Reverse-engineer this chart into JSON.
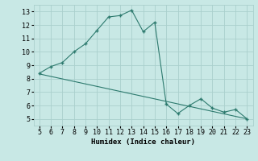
{
  "x": [
    5,
    6,
    7,
    8,
    9,
    10,
    11,
    12,
    13,
    14,
    15,
    16,
    17,
    18,
    19,
    20,
    21,
    22,
    23
  ],
  "y": [
    8.4,
    8.9,
    9.2,
    10.0,
    10.6,
    11.6,
    12.6,
    12.7,
    13.1,
    11.5,
    12.2,
    6.1,
    5.4,
    6.0,
    6.5,
    5.8,
    5.5,
    5.7,
    5.0
  ],
  "trend_x": [
    5,
    23
  ],
  "trend_y": [
    8.35,
    5.0
  ],
  "line_color": "#2d7a6e",
  "bg_color": "#c8e8e5",
  "grid_color": "#aacfcc",
  "xlabel": "Humidex (Indice chaleur)",
  "xlim": [
    4.5,
    23.5
  ],
  "ylim": [
    4.5,
    13.5
  ],
  "xticks": [
    5,
    6,
    7,
    8,
    9,
    10,
    11,
    12,
    13,
    14,
    15,
    16,
    17,
    18,
    19,
    20,
    21,
    22,
    23
  ],
  "yticks": [
    5,
    6,
    7,
    8,
    9,
    10,
    11,
    12,
    13
  ]
}
